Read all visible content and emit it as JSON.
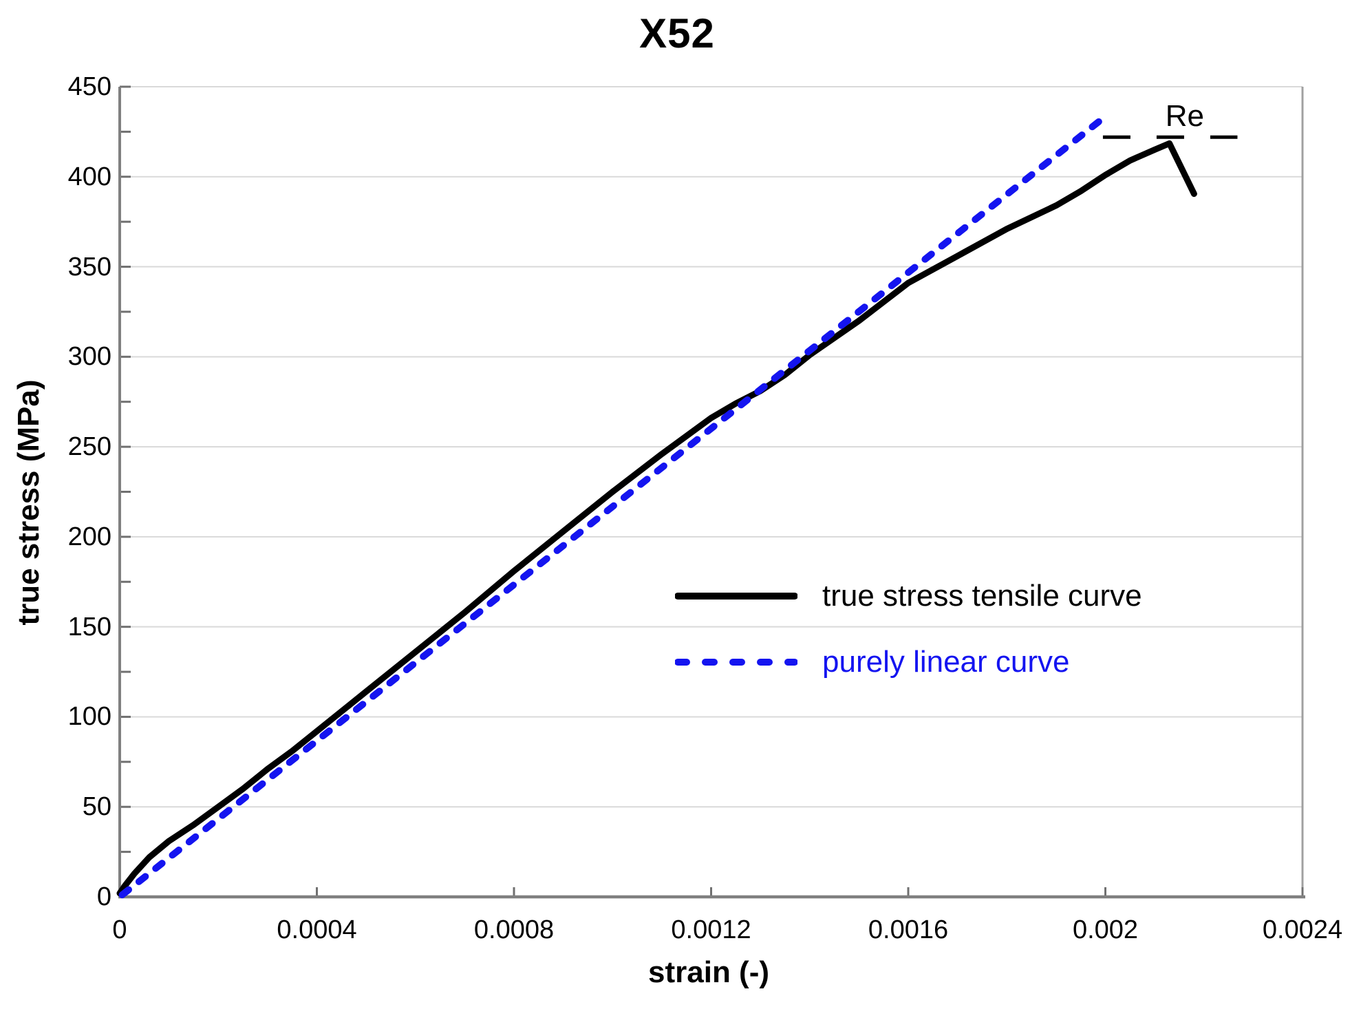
{
  "chart_data": {
    "type": "line",
    "title": "X52",
    "xlabel": "strain (-)",
    "ylabel": "true stress (MPa)",
    "xlim": [
      0,
      0.0024
    ],
    "ylim": [
      0,
      450
    ],
    "x_ticks": {
      "values": [
        0,
        0.0004,
        0.0008,
        0.0012,
        0.0016,
        0.002,
        0.0024
      ],
      "labels": [
        "0",
        "0.0004",
        "0.0008",
        "0.0012",
        "0.0016",
        "0.002",
        "0.0024"
      ]
    },
    "y_ticks": {
      "values": [
        0,
        50,
        100,
        150,
        200,
        250,
        300,
        350,
        400,
        450
      ],
      "labels": [
        "0",
        "50",
        "100",
        "150",
        "200",
        "250",
        "300",
        "350",
        "400",
        "450"
      ]
    },
    "y_minor_tick_step": 25,
    "grid": {
      "horizontal": true,
      "vertical": false,
      "color": "#d9d9d9"
    },
    "axis_color": "#808080",
    "tick_color": "#707070",
    "border_color": "#a0a0a0",
    "legend_position": "inside-right-middle",
    "series": [
      {
        "name": "true stress tensile curve",
        "color": "#000000",
        "style": "solid",
        "points": [
          [
            0.0,
            2
          ],
          [
            1e-05,
            6
          ],
          [
            3e-05,
            13
          ],
          [
            6e-05,
            22
          ],
          [
            0.0001,
            31
          ],
          [
            0.00015,
            40
          ],
          [
            0.0002,
            50
          ],
          [
            0.00025,
            60
          ],
          [
            0.0003,
            71
          ],
          [
            0.00035,
            81
          ],
          [
            0.0004,
            92
          ],
          [
            0.0005,
            114
          ],
          [
            0.0006,
            136
          ],
          [
            0.0007,
            158
          ],
          [
            0.0008,
            181
          ],
          [
            0.0009,
            203
          ],
          [
            0.001,
            225
          ],
          [
            0.0011,
            246
          ],
          [
            0.0012,
            266
          ],
          [
            0.00125,
            274
          ],
          [
            0.0013,
            281
          ],
          [
            0.00135,
            290
          ],
          [
            0.0014,
            301
          ],
          [
            0.0015,
            320
          ],
          [
            0.0016,
            341
          ],
          [
            0.00166,
            350
          ],
          [
            0.0017,
            356
          ],
          [
            0.0018,
            371
          ],
          [
            0.0019,
            384
          ],
          [
            0.00195,
            392
          ],
          [
            0.002,
            401
          ],
          [
            0.00205,
            409
          ],
          [
            0.0021,
            415
          ],
          [
            0.00213,
            418.5
          ],
          [
            0.00218,
            390.5
          ]
        ]
      },
      {
        "name": "purely linear curve",
        "color": "#1414f0",
        "style": "dashed",
        "points": [
          [
            5e-06,
            1.1
          ],
          [
            0.002,
            433.5
          ]
        ]
      }
    ],
    "annotations": [
      {
        "label": "Re",
        "stress_value": 422,
        "x_start": 0.001995,
        "x_end": 0.002268,
        "label_x": 0.002161,
        "style": "long-dash",
        "color": "#000000"
      }
    ]
  }
}
